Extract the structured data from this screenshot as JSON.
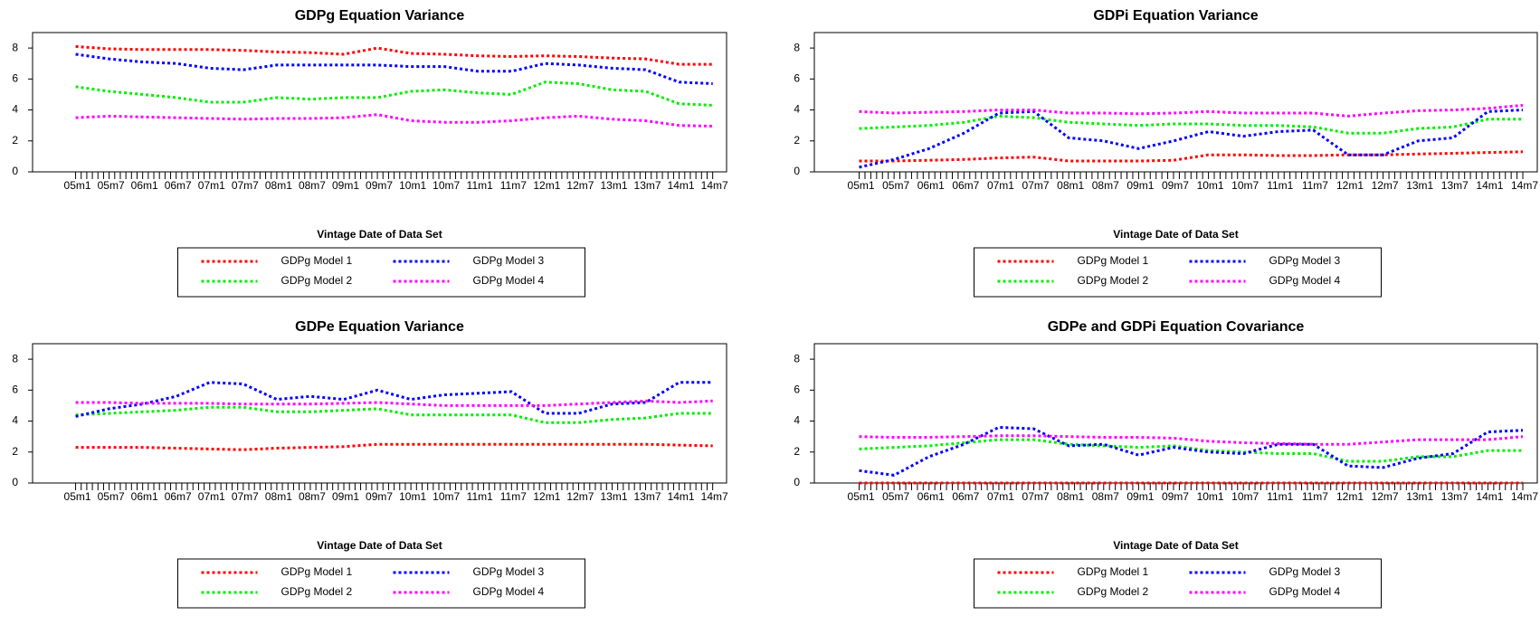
{
  "chart_data": [
    {
      "type": "line",
      "title": "GDPg Equation Variance",
      "x_label": "Vintage Date of Data Set",
      "categories": [
        "05m1",
        "05m7",
        "06m1",
        "06m7",
        "07m1",
        "07m7",
        "08m1",
        "08m7",
        "09m1",
        "09m7",
        "10m1",
        "10m7",
        "11m1",
        "11m7",
        "12m1",
        "12m7",
        "13m1",
        "13m7",
        "14m1",
        "14m7"
      ],
      "ylim": [
        0,
        9
      ],
      "yticks": [
        0,
        2,
        4,
        6,
        8
      ],
      "legend": "below",
      "series": [
        {
          "name": "GDPg Model 1",
          "color": "#ff0000",
          "values": [
            8.1,
            7.95,
            7.9,
            7.9,
            7.9,
            7.85,
            7.75,
            7.7,
            7.6,
            8.0,
            7.65,
            7.6,
            7.5,
            7.45,
            7.5,
            7.45,
            7.35,
            7.3,
            6.95,
            6.95
          ]
        },
        {
          "name": "GDPg Model 2",
          "color": "#00ee00",
          "values": [
            5.5,
            5.2,
            5.0,
            4.8,
            4.5,
            4.5,
            4.8,
            4.7,
            4.8,
            4.8,
            5.2,
            5.3,
            5.1,
            5.0,
            5.8,
            5.7,
            5.3,
            5.2,
            4.4,
            4.3
          ]
        },
        {
          "name": "GDPg Model 3",
          "color": "#0000ff",
          "values": [
            7.6,
            7.3,
            7.1,
            7.0,
            6.7,
            6.6,
            6.9,
            6.9,
            6.9,
            6.9,
            6.8,
            6.8,
            6.5,
            6.5,
            7.0,
            6.9,
            6.7,
            6.6,
            5.8,
            5.7
          ]
        },
        {
          "name": "GDPg Model 4",
          "color": "#ff00ff",
          "values": [
            3.5,
            3.6,
            3.55,
            3.5,
            3.45,
            3.4,
            3.45,
            3.45,
            3.5,
            3.7,
            3.3,
            3.2,
            3.2,
            3.3,
            3.5,
            3.6,
            3.4,
            3.3,
            3.0,
            2.95
          ]
        }
      ]
    },
    {
      "type": "line",
      "title": "GDPi Equation Variance",
      "x_label": "Vintage Date of Data Set",
      "categories": [
        "05m1",
        "05m7",
        "06m1",
        "06m7",
        "07m1",
        "07m7",
        "08m1",
        "08m7",
        "09m1",
        "09m7",
        "10m1",
        "10m7",
        "11m1",
        "11m7",
        "12m1",
        "12m7",
        "13m1",
        "13m7",
        "14m1",
        "14m7"
      ],
      "ylim": [
        0,
        9
      ],
      "yticks": [
        0,
        2,
        4,
        6,
        8
      ],
      "legend": "below",
      "series": [
        {
          "name": "GDPg Model 1",
          "color": "#ff0000",
          "values": [
            0.7,
            0.7,
            0.75,
            0.8,
            0.9,
            0.95,
            0.7,
            0.7,
            0.7,
            0.75,
            1.1,
            1.1,
            1.05,
            1.05,
            1.1,
            1.1,
            1.15,
            1.2,
            1.25,
            1.3
          ]
        },
        {
          "name": "GDPg Model 2",
          "color": "#00ee00",
          "values": [
            2.8,
            2.9,
            3.0,
            3.2,
            3.6,
            3.5,
            3.2,
            3.1,
            3.0,
            3.1,
            3.1,
            3.0,
            3.0,
            2.9,
            2.5,
            2.5,
            2.8,
            2.9,
            3.4,
            3.4
          ]
        },
        {
          "name": "GDPg Model 3",
          "color": "#0000ff",
          "values": [
            0.3,
            0.8,
            1.5,
            2.5,
            3.8,
            3.9,
            2.2,
            2.0,
            1.5,
            2.0,
            2.6,
            2.3,
            2.6,
            2.7,
            1.1,
            1.1,
            2.0,
            2.2,
            3.9,
            4.0
          ]
        },
        {
          "name": "GDPg Model 4",
          "color": "#ff00ff",
          "values": [
            3.9,
            3.8,
            3.85,
            3.9,
            4.0,
            4.0,
            3.8,
            3.8,
            3.75,
            3.8,
            3.9,
            3.8,
            3.8,
            3.8,
            3.6,
            3.8,
            3.95,
            4.0,
            4.1,
            4.3
          ]
        }
      ]
    },
    {
      "type": "line",
      "title": "GDPe Equation Variance",
      "x_label": "Vintage Date of Data Set",
      "categories": [
        "05m1",
        "05m7",
        "06m1",
        "06m7",
        "07m1",
        "07m7",
        "08m1",
        "08m7",
        "09m1",
        "09m7",
        "10m1",
        "10m7",
        "11m1",
        "11m7",
        "12m1",
        "12m7",
        "13m1",
        "13m7",
        "14m1",
        "14m7"
      ],
      "ylim": [
        0,
        9
      ],
      "yticks": [
        0,
        2,
        4,
        6,
        8
      ],
      "legend": "below",
      "series": [
        {
          "name": "GDPg Model 1",
          "color": "#ff0000",
          "values": [
            2.3,
            2.3,
            2.3,
            2.25,
            2.2,
            2.15,
            2.25,
            2.3,
            2.35,
            2.5,
            2.5,
            2.5,
            2.5,
            2.5,
            2.5,
            2.5,
            2.5,
            2.5,
            2.45,
            2.4
          ]
        },
        {
          "name": "GDPg Model 2",
          "color": "#00ee00",
          "values": [
            4.4,
            4.5,
            4.6,
            4.7,
            4.9,
            4.9,
            4.6,
            4.6,
            4.7,
            4.8,
            4.4,
            4.4,
            4.4,
            4.4,
            3.9,
            3.9,
            4.1,
            4.2,
            4.5,
            4.5
          ]
        },
        {
          "name": "GDPg Model 3",
          "color": "#0000ff",
          "values": [
            4.3,
            4.8,
            5.1,
            5.6,
            6.5,
            6.4,
            5.4,
            5.6,
            5.4,
            6.0,
            5.4,
            5.7,
            5.8,
            5.9,
            4.5,
            4.5,
            5.1,
            5.2,
            6.5,
            6.5
          ]
        },
        {
          "name": "GDPg Model 4",
          "color": "#ff00ff",
          "values": [
            5.2,
            5.2,
            5.15,
            5.15,
            5.15,
            5.1,
            5.1,
            5.1,
            5.15,
            5.2,
            5.1,
            5.0,
            5.0,
            5.0,
            5.0,
            5.1,
            5.2,
            5.3,
            5.2,
            5.3
          ]
        }
      ]
    },
    {
      "type": "line",
      "title": "GDPe and GDPi Equation Covariance",
      "x_label": "Vintage Date of Data Set",
      "categories": [
        "05m1",
        "05m7",
        "06m1",
        "06m7",
        "07m1",
        "07m7",
        "08m1",
        "08m7",
        "09m1",
        "09m7",
        "10m1",
        "10m7",
        "11m1",
        "11m7",
        "12m1",
        "12m7",
        "13m1",
        "13m7",
        "14m1",
        "14m7"
      ],
      "ylim": [
        0,
        9
      ],
      "yticks": [
        0,
        2,
        4,
        6,
        8
      ],
      "legend": "below",
      "series": [
        {
          "name": "GDPg Model 1",
          "color": "#ff0000",
          "values": [
            0,
            0,
            0,
            0,
            0,
            0,
            0,
            0,
            0,
            0,
            0,
            0,
            0,
            0,
            0,
            0,
            0,
            0,
            0,
            0
          ]
        },
        {
          "name": "GDPg Model 2",
          "color": "#00ee00",
          "values": [
            2.2,
            2.3,
            2.4,
            2.6,
            2.8,
            2.8,
            2.5,
            2.4,
            2.3,
            2.4,
            2.1,
            2.0,
            1.9,
            1.9,
            1.4,
            1.4,
            1.7,
            1.7,
            2.1,
            2.1
          ]
        },
        {
          "name": "GDPg Model 3",
          "color": "#0000ff",
          "values": [
            0.8,
            0.5,
            1.7,
            2.5,
            3.6,
            3.5,
            2.4,
            2.5,
            1.8,
            2.3,
            2.0,
            1.9,
            2.5,
            2.5,
            1.1,
            1.0,
            1.6,
            1.9,
            3.3,
            3.4
          ]
        },
        {
          "name": "GDPg Model 4",
          "color": "#ff00ff",
          "values": [
            3.0,
            2.95,
            2.95,
            3.0,
            3.05,
            3.05,
            3.0,
            2.95,
            2.95,
            2.9,
            2.7,
            2.6,
            2.55,
            2.5,
            2.5,
            2.65,
            2.8,
            2.8,
            2.8,
            3.0
          ]
        }
      ]
    }
  ]
}
